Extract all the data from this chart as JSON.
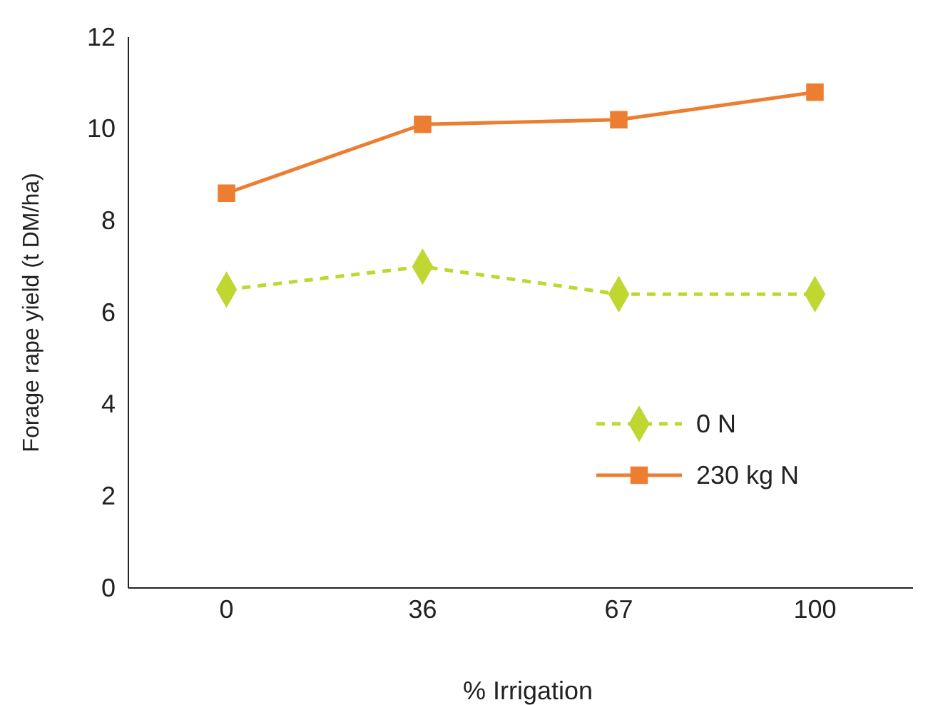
{
  "chart_data": {
    "type": "line",
    "xlabel": "% Irrigation",
    "ylabel": "Forage rape yield (t DM/ha)",
    "categories": [
      "0",
      "36",
      "67",
      "100"
    ],
    "series": [
      {
        "name": "0 N",
        "color": "#bfd730",
        "values": [
          6.5,
          7.0,
          6.4,
          6.4
        ],
        "marker": "diamond",
        "line_style": "dashed"
      },
      {
        "name": "230 kg N",
        "color": "#ed7d31",
        "values": [
          8.6,
          10.1,
          10.2,
          10.8
        ],
        "marker": "square",
        "line_style": "solid"
      }
    ],
    "ylim": [
      0,
      12
    ],
    "yticks": [
      0,
      2,
      4,
      6,
      8,
      10,
      12
    ],
    "grid": false,
    "legend": "right"
  }
}
